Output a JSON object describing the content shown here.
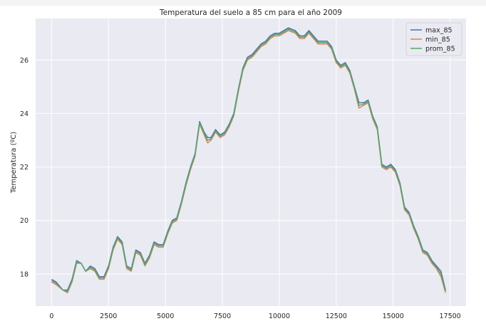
{
  "chart_data": {
    "type": "line",
    "title": "Temperatura del suelo a 85 cm para el año 2009",
    "xlabel": "",
    "ylabel": "Temperatura (ºC)",
    "xlim": [
      -700,
      18200
    ],
    "ylim": [
      16.8,
      27.55
    ],
    "xticks": [
      0,
      2500,
      5000,
      7500,
      10000,
      12500,
      15000,
      17500
    ],
    "xtick_labels": [
      "0",
      "2500",
      "5000",
      "7500",
      "10000",
      "12500",
      "15000",
      "17500"
    ],
    "yticks": [
      18,
      20,
      22,
      24,
      26
    ],
    "ytick_labels": [
      "18",
      "20",
      "22",
      "24",
      "26"
    ],
    "grid": true,
    "legend": "top-right",
    "colors": {
      "background": "#eaeaf2",
      "grid": "#ffffff",
      "max_85": "#4c72b0",
      "min_85": "#dd8452",
      "prom_85": "#55a868"
    },
    "x": [
      0,
      200,
      500,
      700,
      900,
      1100,
      1300,
      1500,
      1700,
      1900,
      2100,
      2300,
      2500,
      2700,
      2900,
      3100,
      3300,
      3500,
      3700,
      3900,
      4100,
      4300,
      4500,
      4700,
      4900,
      5100,
      5300,
      5500,
      5700,
      5900,
      6100,
      6300,
      6500,
      6700,
      6850,
      7000,
      7200,
      7400,
      7600,
      7800,
      8000,
      8200,
      8400,
      8600,
      8800,
      9000,
      9200,
      9400,
      9600,
      9800,
      10000,
      10200,
      10400,
      10700,
      10900,
      11100,
      11300,
      11500,
      11700,
      11900,
      12100,
      12300,
      12500,
      12700,
      12900,
      13100,
      13300,
      13500,
      13700,
      13900,
      14100,
      14300,
      14500,
      14700,
      14900,
      15100,
      15300,
      15500,
      15700,
      15900,
      16100,
      16300,
      16500,
      16700,
      16900,
      17100,
      17300
    ],
    "series": [
      {
        "name": "max_85",
        "values": [
          17.8,
          17.7,
          17.4,
          17.4,
          17.8,
          18.5,
          18.4,
          18.1,
          18.3,
          18.2,
          17.9,
          17.9,
          18.3,
          19.0,
          19.4,
          19.2,
          18.3,
          18.2,
          18.9,
          18.8,
          18.4,
          18.7,
          19.2,
          19.1,
          19.1,
          19.6,
          20.0,
          20.1,
          20.7,
          21.4,
          22.0,
          22.5,
          23.7,
          23.3,
          23.1,
          23.1,
          23.4,
          23.2,
          23.3,
          23.6,
          24.0,
          24.9,
          25.7,
          26.1,
          26.2,
          26.4,
          26.6,
          26.7,
          26.9,
          27.0,
          27.0,
          27.1,
          27.2,
          27.1,
          26.9,
          26.9,
          27.1,
          26.9,
          26.7,
          26.7,
          26.7,
          26.5,
          26.0,
          25.8,
          25.9,
          25.6,
          25.0,
          24.4,
          24.4,
          24.5,
          23.9,
          23.5,
          22.1,
          22.0,
          22.1,
          21.9,
          21.4,
          20.5,
          20.3,
          19.8,
          19.4,
          18.9,
          18.8,
          18.5,
          18.3,
          18.1,
          17.4
        ]
      },
      {
        "name": "min_85",
        "values": [
          17.7,
          17.6,
          17.4,
          17.3,
          17.7,
          18.4,
          18.4,
          18.1,
          18.2,
          18.1,
          17.8,
          17.8,
          18.2,
          18.9,
          19.3,
          19.1,
          18.2,
          18.1,
          18.8,
          18.7,
          18.3,
          18.6,
          19.1,
          19.0,
          19.0,
          19.5,
          19.9,
          20.0,
          20.6,
          21.3,
          21.9,
          22.4,
          23.6,
          23.2,
          22.9,
          23.0,
          23.3,
          23.1,
          23.2,
          23.5,
          23.9,
          24.8,
          25.6,
          26.0,
          26.1,
          26.3,
          26.5,
          26.6,
          26.8,
          26.9,
          26.9,
          27.0,
          27.1,
          27.0,
          26.8,
          26.8,
          27.0,
          26.8,
          26.6,
          26.6,
          26.6,
          26.4,
          25.9,
          25.7,
          25.8,
          25.5,
          24.9,
          24.2,
          24.3,
          24.4,
          23.8,
          23.4,
          22.0,
          21.9,
          22.0,
          21.8,
          21.3,
          20.4,
          20.2,
          19.7,
          19.3,
          18.8,
          18.7,
          18.4,
          18.2,
          17.9,
          17.3
        ]
      },
      {
        "name": "prom_85",
        "values": [
          17.75,
          17.65,
          17.4,
          17.35,
          17.75,
          18.45,
          18.4,
          18.1,
          18.25,
          18.15,
          17.85,
          17.85,
          18.25,
          18.95,
          19.35,
          19.15,
          18.25,
          18.15,
          18.85,
          18.75,
          18.35,
          18.65,
          19.15,
          19.05,
          19.05,
          19.55,
          19.95,
          20.05,
          20.65,
          21.35,
          21.95,
          22.45,
          23.65,
          23.25,
          23.0,
          23.05,
          23.35,
          23.15,
          23.25,
          23.55,
          23.95,
          24.85,
          25.65,
          26.05,
          26.15,
          26.35,
          26.55,
          26.65,
          26.85,
          26.95,
          26.95,
          27.05,
          27.15,
          27.05,
          26.85,
          26.85,
          27.05,
          26.85,
          26.65,
          26.65,
          26.65,
          26.45,
          25.95,
          25.75,
          25.85,
          25.55,
          24.95,
          24.3,
          24.35,
          24.45,
          23.85,
          23.45,
          22.05,
          21.95,
          22.05,
          21.85,
          21.35,
          20.45,
          20.25,
          19.75,
          19.35,
          18.85,
          18.75,
          18.45,
          18.25,
          18.0,
          17.35
        ]
      }
    ]
  }
}
